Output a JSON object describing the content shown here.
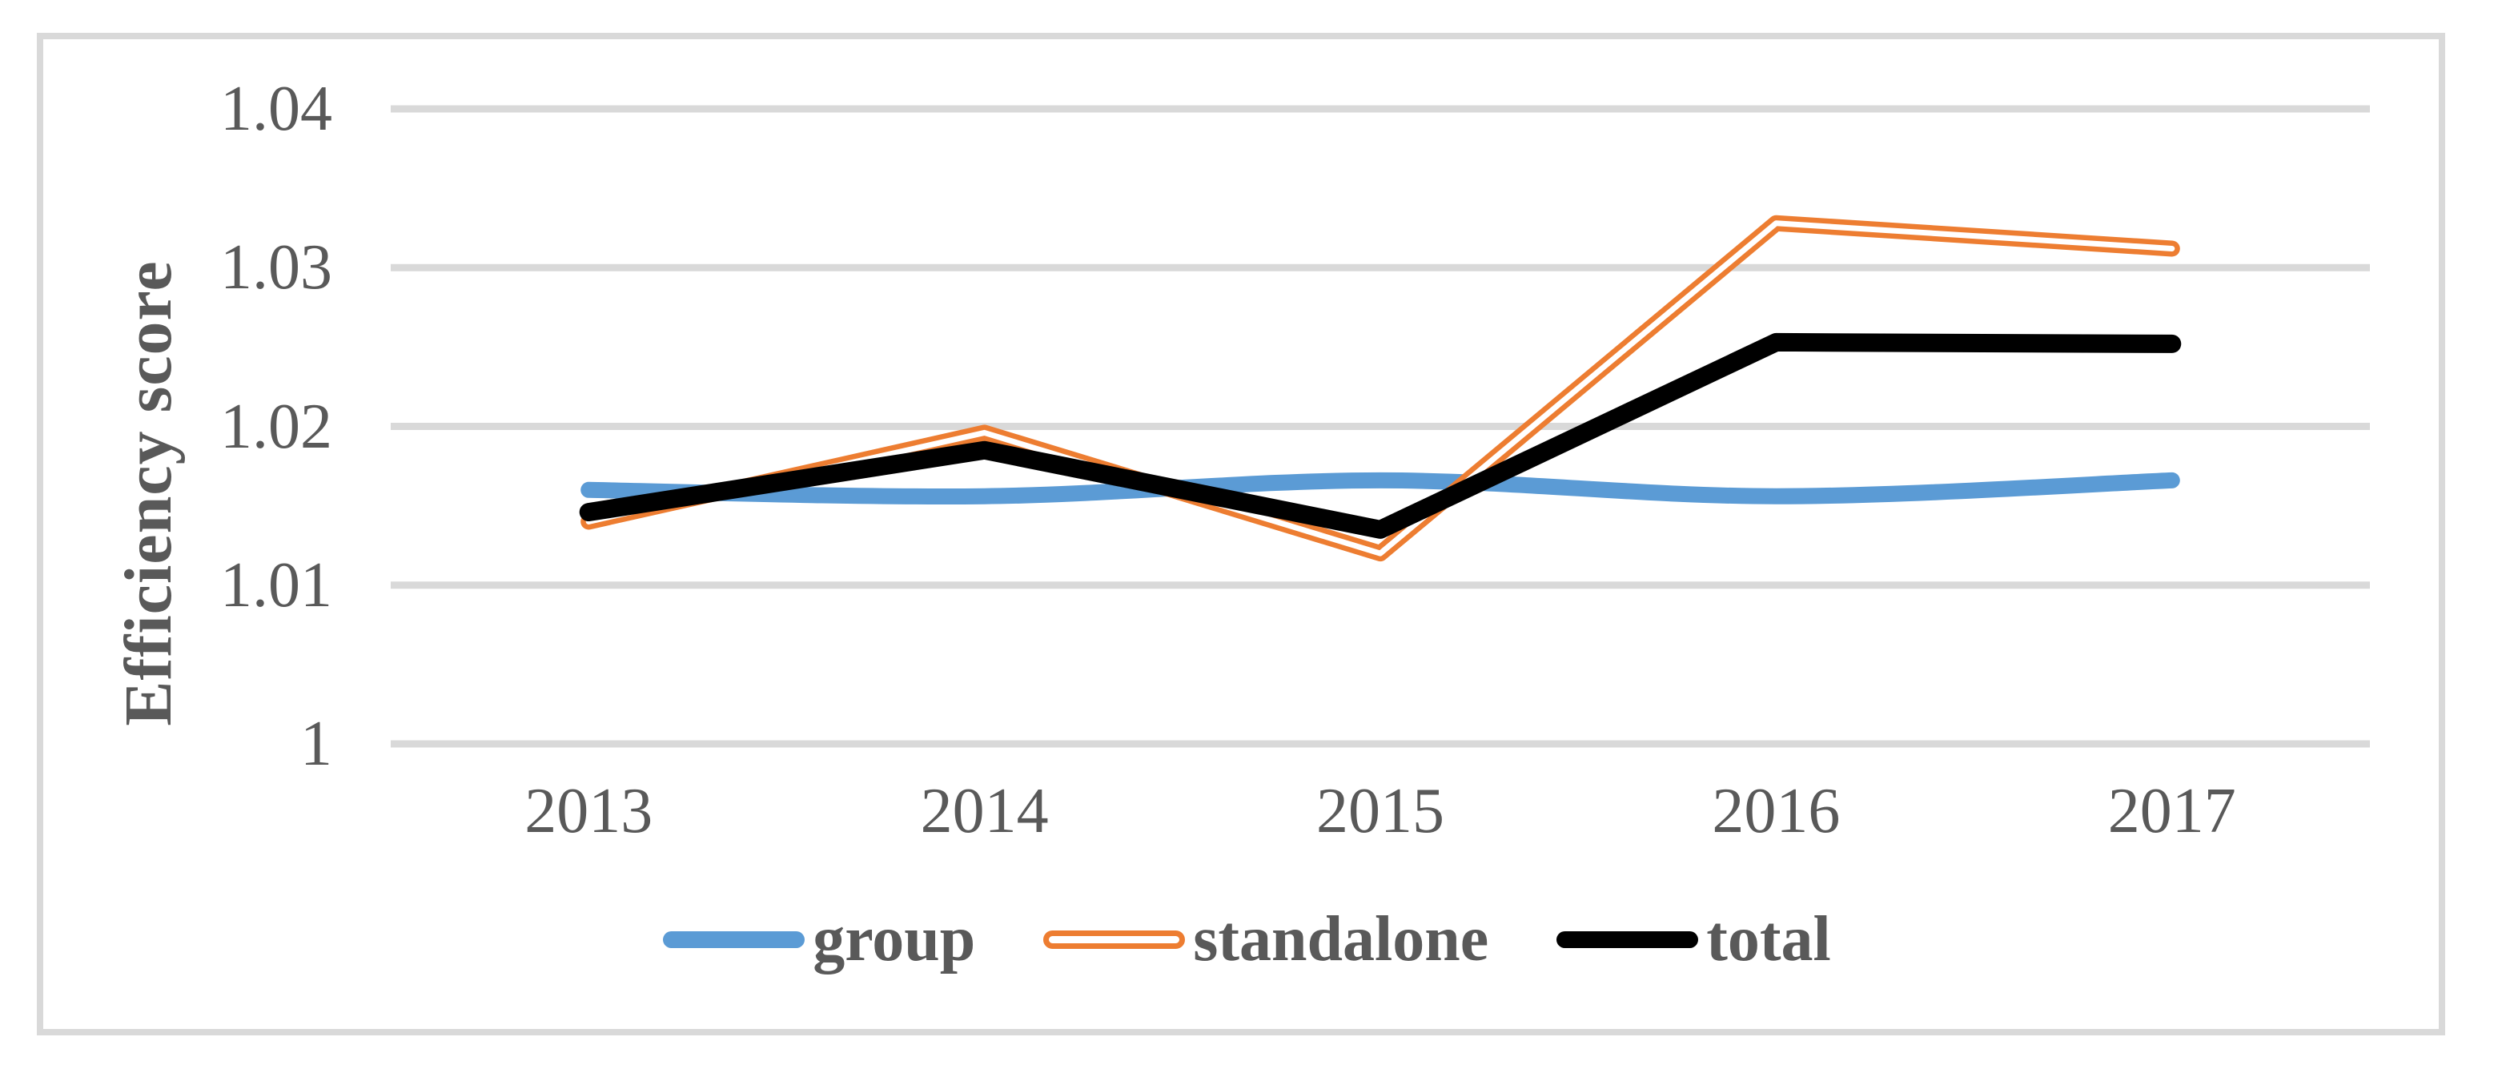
{
  "figure": {
    "background": "#FFFFFF",
    "frame_color": "#D9D9D9",
    "text_color": "#595959",
    "gridline_color": "#D9D9D9"
  },
  "axes": {
    "y_title": "Efficiency score",
    "y_tick_labels": [
      "1.04",
      "1.03",
      "1.02",
      "1.01",
      "1"
    ],
    "x_tick_labels": [
      "2013",
      "2014",
      "2015",
      "2016",
      "2017"
    ]
  },
  "legend": {
    "position": "bottom",
    "items": [
      {
        "label": "group",
        "color": "#5B9BD5",
        "style": "solid"
      },
      {
        "label": "standalone",
        "color": "#ED7D31",
        "style": "double"
      },
      {
        "label": "total",
        "color": "#000000",
        "style": "solid"
      }
    ]
  },
  "chart_data": {
    "type": "line",
    "title": "",
    "xlabel": "",
    "ylabel": "Efficiency score",
    "categories": [
      "2013",
      "2014",
      "2015",
      "2016",
      "2017"
    ],
    "series": [
      {
        "name": "group",
        "color": "#5B9BD5",
        "style": "solid",
        "smooth": true,
        "line_width": 20,
        "values": [
          1.016,
          1.0156,
          1.0166,
          1.0156,
          1.0166
        ]
      },
      {
        "name": "standalone",
        "color": "#ED7D31",
        "style": "double",
        "smooth": false,
        "line_width": 20,
        "values": [
          1.014,
          1.0196,
          1.012,
          1.0328,
          1.0312
        ]
      },
      {
        "name": "total",
        "color": "#000000",
        "style": "solid",
        "smooth": false,
        "line_width": 23,
        "values": [
          1.0146,
          1.0185,
          1.0135,
          1.0253,
          1.0252
        ]
      }
    ],
    "ylim": [
      1.0,
      1.04
    ],
    "yticks": [
      1.04,
      1.03,
      1.02,
      1.01,
      1.0
    ],
    "grid": true,
    "legend_position": "bottom"
  }
}
